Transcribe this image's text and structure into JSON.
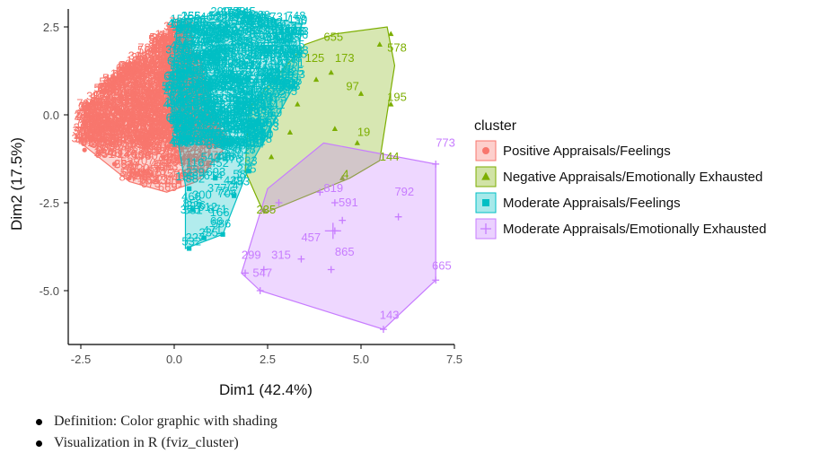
{
  "chart_data": {
    "type": "scatter",
    "xlabel": "Dim1 (42.4%)",
    "ylabel": "Dim2 (17.5%)",
    "xlim": [
      -2.8,
      7.6
    ],
    "ylim": [
      -6.4,
      3.0
    ],
    "xticks": [
      -2.5,
      0.0,
      2.5,
      5.0,
      7.5
    ],
    "xtick_labels": [
      "-2.5",
      "0.0",
      "2.5",
      "5.0",
      "7.5"
    ],
    "yticks": [
      2.5,
      0.0,
      -2.5,
      -5.0
    ],
    "ytick_labels": [
      "2.5",
      "0.0",
      "-2.5",
      "-5.0"
    ],
    "grid": false,
    "legend": {
      "title": "cluster",
      "position": "right"
    },
    "series": [
      {
        "name": "Positive Appraisals/Feelings",
        "color": "#F8766D",
        "marker": "circle",
        "hull": [
          [
            -2.5,
            -0.8
          ],
          [
            -2.4,
            0.2
          ],
          [
            -1.0,
            1.6
          ],
          [
            0.3,
            2.7
          ],
          [
            0.4,
            1.8
          ],
          [
            1.3,
            -1.0
          ],
          [
            0.6,
            -1.9
          ],
          [
            -0.2,
            -2.2
          ],
          [
            -1.2,
            -1.9
          ]
        ],
        "points": [
          [
            -2.4,
            -1.0
          ],
          [
            -1.6,
            -1.4
          ],
          [
            -1.2,
            -1.8
          ],
          [
            -0.6,
            -1.7
          ],
          [
            0.1,
            -1.9
          ],
          [
            0.4,
            -1.5
          ],
          [
            -0.3,
            -1.2
          ],
          [
            -0.8,
            -1.6
          ],
          [
            -2.0,
            -1.1
          ],
          [
            0.9,
            -1.4
          ]
        ],
        "labels": [
          {
            "t": "6",
            "x": -2.5,
            "y": -0.85
          },
          {
            "t": "70",
            "x": -1.3,
            "y": -1.55
          }
        ]
      },
      {
        "name": "Negative Appraisals/Emotionally Exhausted",
        "color": "#7CAE00",
        "marker": "triangle",
        "hull": [
          [
            2.0,
            0.2
          ],
          [
            3.5,
            2.0
          ],
          [
            4.3,
            2.3
          ],
          [
            5.7,
            2.5
          ],
          [
            5.9,
            1.4
          ],
          [
            5.5,
            -1.3
          ],
          [
            4.7,
            -1.8
          ],
          [
            2.4,
            -2.8
          ],
          [
            1.9,
            -1.6
          ]
        ],
        "points": [
          [
            5.8,
            2.3
          ],
          [
            5.5,
            2.0
          ],
          [
            4.2,
            1.2
          ],
          [
            5.0,
            0.6
          ],
          [
            5.8,
            0.3
          ],
          [
            4.9,
            -0.8
          ],
          [
            4.3,
            -0.4
          ],
          [
            4.5,
            -1.8
          ],
          [
            2.4,
            -2.7
          ],
          [
            3.1,
            -0.5
          ],
          [
            3.3,
            0.3
          ],
          [
            2.6,
            -1.2
          ],
          [
            3.8,
            1.0
          ]
        ],
        "labels": [
          {
            "t": "655",
            "x": 4.0,
            "y": 2.1
          },
          {
            "t": "578",
            "x": 5.7,
            "y": 1.8
          },
          {
            "t": "125",
            "x": 3.5,
            "y": 1.5
          },
          {
            "t": "173",
            "x": 4.3,
            "y": 1.5
          },
          {
            "t": "97",
            "x": 4.6,
            "y": 0.7
          },
          {
            "t": "195",
            "x": 5.7,
            "y": 0.4
          },
          {
            "t": "19",
            "x": 4.9,
            "y": -0.6
          },
          {
            "t": "144",
            "x": 5.5,
            "y": -1.3
          },
          {
            "t": "4",
            "x": 4.5,
            "y": -1.8
          },
          {
            "t": "235",
            "x": 2.2,
            "y": -2.8
          }
        ]
      },
      {
        "name": "Moderate Appraisals/Feelings",
        "color": "#00BFC4",
        "marker": "square",
        "hull": [
          [
            0.1,
            2.7
          ],
          [
            1.6,
            2.9
          ],
          [
            3.4,
            2.6
          ],
          [
            3.3,
            1.0
          ],
          [
            2.0,
            -1.5
          ],
          [
            1.3,
            -3.4
          ],
          [
            0.3,
            -3.8
          ],
          [
            0.3,
            -2.0
          ],
          [
            -0.1,
            0.5
          ]
        ],
        "points": [
          [
            0.4,
            -3.8
          ],
          [
            0.8,
            -3.5
          ],
          [
            1.3,
            -3.4
          ],
          [
            0.5,
            -2.7
          ],
          [
            1.6,
            -2.3
          ],
          [
            0.4,
            -2.1
          ],
          [
            1.1,
            -1.8
          ],
          [
            2.0,
            -1.6
          ],
          [
            2.2,
            -0.2
          ]
        ],
        "labels": [
          {
            "t": "586",
            "x": 1.0,
            "y": -3.2
          },
          {
            "t": "227",
            "x": 0.3,
            "y": -3.6
          },
          {
            "t": "483",
            "x": 1.5,
            "y": -2.0
          },
          {
            "t": "748",
            "x": 3.0,
            "y": 2.7
          }
        ]
      },
      {
        "name": "Moderate Appraisals/Emotionally Exhausted",
        "color": "#C77CFF",
        "marker": "cross",
        "hull": [
          [
            1.8,
            -4.5
          ],
          [
            2.3,
            -5.0
          ],
          [
            5.6,
            -6.1
          ],
          [
            7.0,
            -4.7
          ],
          [
            7.0,
            -1.4
          ],
          [
            4.0,
            -0.8
          ],
          [
            2.5,
            -2.1
          ]
        ],
        "points": [
          [
            7.0,
            -1.4
          ],
          [
            6.0,
            -2.9
          ],
          [
            7.0,
            -4.7
          ],
          [
            5.6,
            -6.1
          ],
          [
            2.3,
            -5.0
          ],
          [
            1.9,
            -4.5
          ],
          [
            2.4,
            -4.4
          ],
          [
            3.4,
            -4.1
          ],
          [
            4.2,
            -4.4
          ],
          [
            4.3,
            -2.5
          ],
          [
            3.9,
            -2.2
          ],
          [
            2.8,
            -2.5
          ],
          [
            4.3,
            -3.3
          ],
          [
            4.5,
            -3.0
          ]
        ],
        "labels": [
          {
            "t": "773",
            "x": 7.0,
            "y": -0.9
          },
          {
            "t": "792",
            "x": 5.9,
            "y": -2.3
          },
          {
            "t": "819",
            "x": 4.0,
            "y": -2.2
          },
          {
            "t": "591",
            "x": 4.4,
            "y": -2.6
          },
          {
            "t": "457",
            "x": 3.4,
            "y": -3.6
          },
          {
            "t": "865",
            "x": 4.3,
            "y": -4.0
          },
          {
            "t": "299",
            "x": 1.8,
            "y": -4.1
          },
          {
            "t": "315",
            "x": 2.6,
            "y": -4.1
          },
          {
            "t": "547",
            "x": 2.1,
            "y": -4.6
          },
          {
            "t": "665",
            "x": 6.9,
            "y": -4.4
          },
          {
            "t": "143",
            "x": 5.5,
            "y": -5.8
          }
        ]
      }
    ]
  },
  "notes": [
    "Definition: Color graphic with shading",
    "Visualization in R (fviz_cluster)"
  ]
}
